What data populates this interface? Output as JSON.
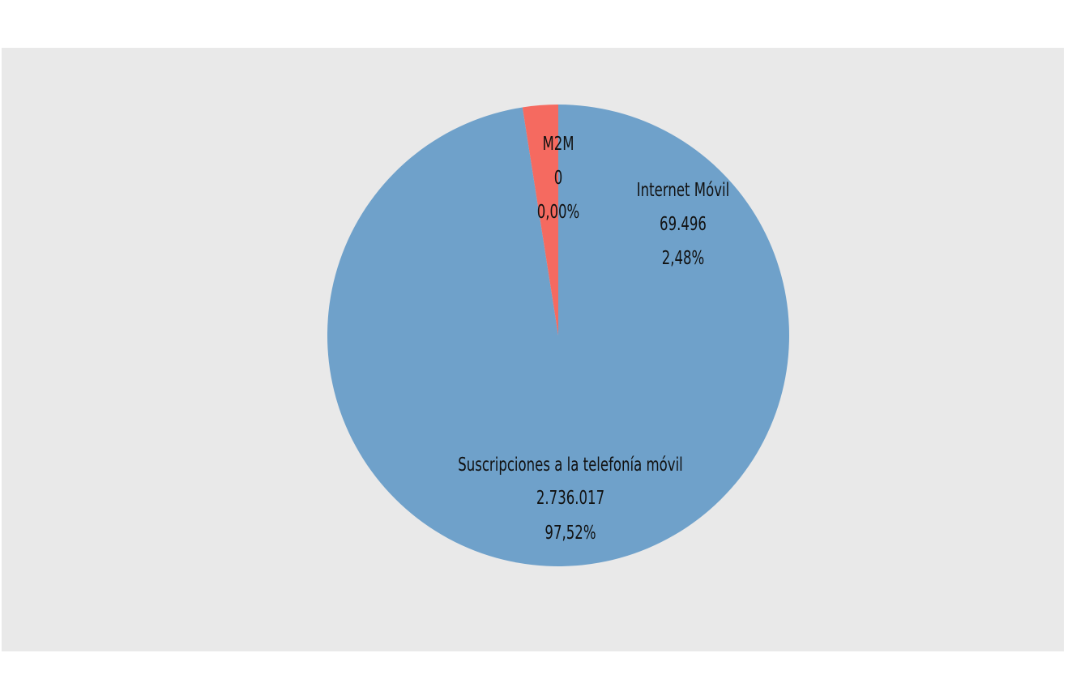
{
  "chart_data": {
    "type": "pie",
    "slices": [
      {
        "name": "Suscripciones a la telefonía móvil",
        "value": 2736017,
        "value_label": "2.736.017",
        "percent_label": "97,52%",
        "color": "#6fa1ca"
      },
      {
        "name": "Internet Móvil",
        "value": 69496,
        "value_label": "69.496",
        "percent_label": "2,48%",
        "color": "#f56a60"
      },
      {
        "name": "M2M",
        "value": 0,
        "value_label": "0",
        "percent_label": "0,00%",
        "color": "#f56a60"
      }
    ],
    "background_color": "#e9e9e9"
  }
}
